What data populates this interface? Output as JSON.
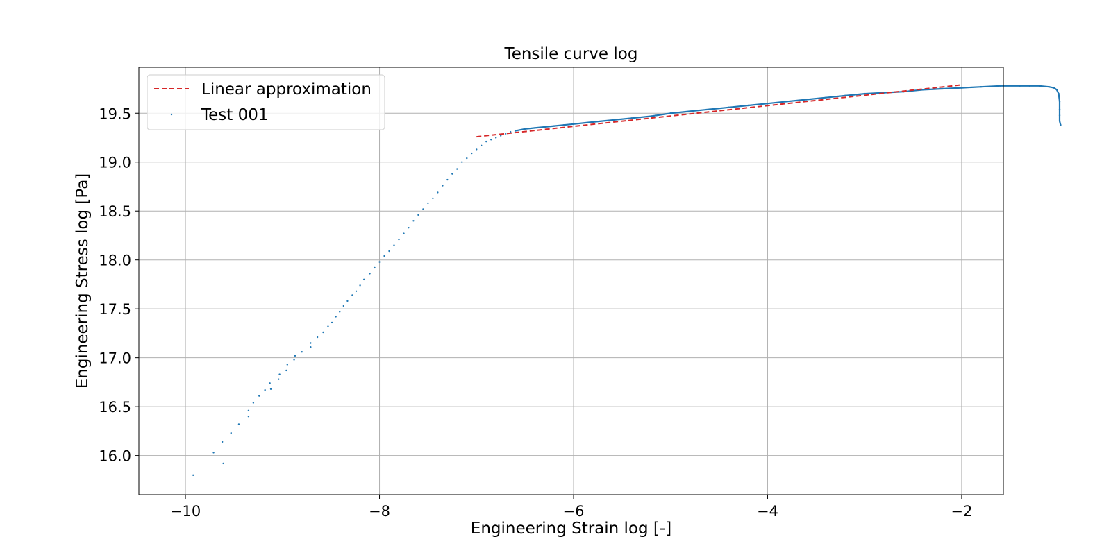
{
  "chart_data": {
    "type": "scatter",
    "title": "Tensile curve log",
    "xlabel": "Engineering Strain log [-]",
    "ylabel": "Engineering Stress log [Pa]",
    "xlim": [
      -10.48,
      -1.57
    ],
    "ylim": [
      15.6,
      19.97
    ],
    "xticks": [
      -10,
      -8,
      -6,
      -4,
      -2
    ],
    "xtick_labels": [
      "−10",
      "−8",
      "−6",
      "−4",
      "−2"
    ],
    "yticks": [
      16.0,
      16.5,
      17.0,
      17.5,
      18.0,
      18.5,
      19.0,
      19.5
    ],
    "ytick_labels": [
      "16.0",
      "16.5",
      "17.0",
      "17.5",
      "18.0",
      "18.5",
      "19.0",
      "19.5"
    ],
    "grid": true,
    "legend": {
      "position": "top-left",
      "entries": [
        "Linear approximation",
        "Test 001"
      ]
    },
    "series": [
      {
        "name": "Linear approximation",
        "style": "dashed-line",
        "color": "#d62728",
        "x": [
          -7.0,
          -2.0
        ],
        "y": [
          19.26,
          19.79
        ]
      },
      {
        "name": "Test 001",
        "style": "points",
        "color": "#1f77b4",
        "x": [
          -9.92,
          -9.71,
          -9.62,
          -9.61,
          -9.53,
          -9.45,
          -9.35,
          -9.35,
          -9.3,
          -9.24,
          -9.18,
          -9.13,
          -9.12,
          -9.04,
          -9.03,
          -8.96,
          -8.95,
          -8.88,
          -8.87,
          -8.8,
          -8.71,
          -8.71,
          -8.64,
          -8.58,
          -8.53,
          -8.49,
          -8.45,
          -8.41,
          -8.37,
          -8.33,
          -8.28,
          -8.24,
          -8.2,
          -8.16,
          -8.1,
          -8.05,
          -8.0,
          -7.95,
          -7.9,
          -7.85,
          -7.8,
          -7.75,
          -7.7,
          -7.65,
          -7.6,
          -7.55,
          -7.5,
          -7.45,
          -7.4,
          -7.35,
          -7.3,
          -7.25,
          -7.2,
          -7.15,
          -7.1,
          -7.05,
          -7.0,
          -6.95,
          -6.9,
          -6.85,
          -6.8,
          -6.75,
          -6.7,
          -6.65,
          -6.6,
          -6.5,
          -6.4,
          -6.3,
          -6.2,
          -6.1,
          -6.0,
          -5.8,
          -5.6,
          -5.4,
          -5.2,
          -5.0,
          -4.8,
          -4.6,
          -4.4,
          -4.2,
          -4.0,
          -3.8,
          -3.6,
          -3.4,
          -3.2,
          -3.1,
          -3.0,
          -2.8,
          -2.6,
          -2.4,
          -2.2,
          -2.0,
          -1.8,
          -1.6,
          -1.4,
          -1.3,
          -1.2,
          -1.1,
          -1.05,
          -1.02,
          -1.0,
          -0.99,
          -0.99,
          -0.99,
          -0.99,
          -0.98
        ],
        "y": [
          15.8,
          16.03,
          16.14,
          15.92,
          16.23,
          16.32,
          16.4,
          16.46,
          16.54,
          16.61,
          16.67,
          16.74,
          16.68,
          16.78,
          16.83,
          16.87,
          16.93,
          16.98,
          17.02,
          17.06,
          17.11,
          17.15,
          17.21,
          17.26,
          17.32,
          17.36,
          17.42,
          17.47,
          17.53,
          17.58,
          17.64,
          17.68,
          17.74,
          17.8,
          17.86,
          17.92,
          17.98,
          18.04,
          18.09,
          18.15,
          18.21,
          18.27,
          18.33,
          18.4,
          18.46,
          18.52,
          18.58,
          18.63,
          18.69,
          18.76,
          18.82,
          18.88,
          18.93,
          19.0,
          19.04,
          19.09,
          19.13,
          19.17,
          19.21,
          19.23,
          19.25,
          19.27,
          19.29,
          19.31,
          19.32,
          19.34,
          19.35,
          19.36,
          19.37,
          19.38,
          19.39,
          19.41,
          19.43,
          19.45,
          19.47,
          19.5,
          19.52,
          19.54,
          19.56,
          19.58,
          19.6,
          19.62,
          19.64,
          19.66,
          19.68,
          19.69,
          19.7,
          19.71,
          19.72,
          19.74,
          19.75,
          19.76,
          19.77,
          19.78,
          19.78,
          19.78,
          19.78,
          19.77,
          19.76,
          19.74,
          19.7,
          19.62,
          19.54,
          19.48,
          19.42,
          19.38
        ]
      }
    ]
  }
}
